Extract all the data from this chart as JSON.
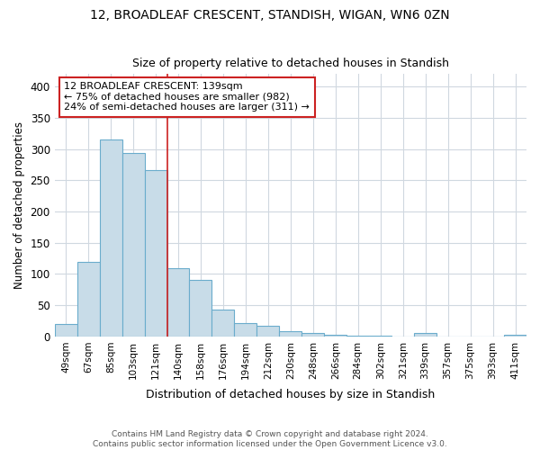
{
  "title1": "12, BROADLEAF CRESCENT, STANDISH, WIGAN, WN6 0ZN",
  "title2": "Size of property relative to detached houses in Standish",
  "xlabel": "Distribution of detached houses by size in Standish",
  "ylabel": "Number of detached properties",
  "categories": [
    "49sqm",
    "67sqm",
    "85sqm",
    "103sqm",
    "121sqm",
    "140sqm",
    "158sqm",
    "176sqm",
    "194sqm",
    "212sqm",
    "230sqm",
    "248sqm",
    "266sqm",
    "284sqm",
    "302sqm",
    "321sqm",
    "339sqm",
    "357sqm",
    "375sqm",
    "393sqm",
    "411sqm"
  ],
  "values": [
    20,
    120,
    315,
    293,
    267,
    110,
    90,
    43,
    22,
    17,
    9,
    5,
    3,
    2,
    1,
    0,
    5,
    0,
    0,
    0,
    3
  ],
  "bar_color": "#c8dce8",
  "bar_edge_color": "#6aaccc",
  "vline_x": 5,
  "vline_color": "#cc2222",
  "annotation_text": "12 BROADLEAF CRESCENT: 139sqm\n← 75% of detached houses are smaller (982)\n24% of semi-detached houses are larger (311) →",
  "annotation_box_facecolor": "white",
  "annotation_box_edgecolor": "#cc2222",
  "ylim": [
    0,
    420
  ],
  "yticks": [
    0,
    50,
    100,
    150,
    200,
    250,
    300,
    350,
    400
  ],
  "footnote": "Contains HM Land Registry data © Crown copyright and database right 2024.\nContains public sector information licensed under the Open Government Licence v3.0.",
  "bg_color": "#ffffff",
  "grid_color": "#d0d8e0"
}
